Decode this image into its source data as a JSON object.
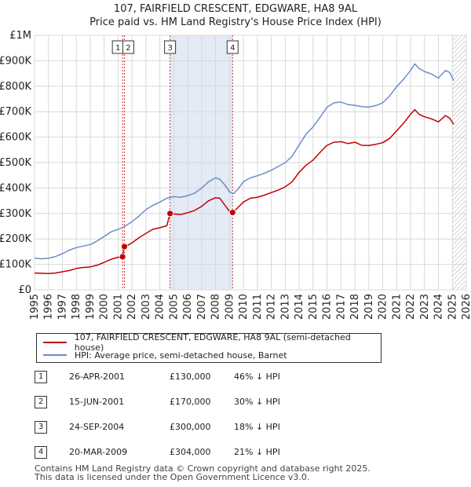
{
  "chart_data": {
    "type": "line",
    "title": "107, FAIRFIELD CRESCENT, EDGWARE, HA8 9AL",
    "subtitle": "Price paid vs. HM Land Registry's House Price Index (HPI)",
    "xlim": [
      1995,
      2026
    ],
    "ylim": [
      0,
      1000000
    ],
    "x_ticks": [
      "1995",
      "1996",
      "1997",
      "1998",
      "1999",
      "2000",
      "2001",
      "2002",
      "2003",
      "2004",
      "2005",
      "2006",
      "2007",
      "2008",
      "2009",
      "2010",
      "2011",
      "2012",
      "2013",
      "2014",
      "2015",
      "2016",
      "2017",
      "2018",
      "2019",
      "2020",
      "2021",
      "2022",
      "2023",
      "2024",
      "2025",
      "2026"
    ],
    "y_ticks": [
      {
        "value": 0,
        "label": "£0"
      },
      {
        "value": 100000,
        "label": "£100K"
      },
      {
        "value": 200000,
        "label": "£200K"
      },
      {
        "value": 300000,
        "label": "£300K"
      },
      {
        "value": 400000,
        "label": "£400K"
      },
      {
        "value": 500000,
        "label": "£500K"
      },
      {
        "value": 600000,
        "label": "£600K"
      },
      {
        "value": 700000,
        "label": "£700K"
      },
      {
        "value": 800000,
        "label": "£800K"
      },
      {
        "value": 900000,
        "label": "£900K"
      },
      {
        "value": 1000000,
        "label": "£1M"
      }
    ],
    "grid": true,
    "shaded_spans": [
      {
        "from": 2004.73,
        "to": 2009.22
      }
    ],
    "hatched_from": 2025.0,
    "series": [
      {
        "name": "107, FAIRFIELD CRESCENT, EDGWARE, HA8 9AL (semi-detached house)",
        "color": "#c00000",
        "points": [
          [
            1995.0,
            66000
          ],
          [
            1995.5,
            65000
          ],
          [
            1996.0,
            64000
          ],
          [
            1996.5,
            66000
          ],
          [
            1997.0,
            71000
          ],
          [
            1997.5,
            76000
          ],
          [
            1998.0,
            84000
          ],
          [
            1998.5,
            88000
          ],
          [
            1999.0,
            90000
          ],
          [
            1999.5,
            97000
          ],
          [
            2000.0,
            108000
          ],
          [
            2000.5,
            120000
          ],
          [
            2001.0,
            128000
          ],
          [
            2001.32,
            130000
          ],
          [
            2001.45,
            170000
          ],
          [
            2001.8,
            178000
          ],
          [
            2002.0,
            185000
          ],
          [
            2002.5,
            205000
          ],
          [
            2003.0,
            222000
          ],
          [
            2003.5,
            238000
          ],
          [
            2004.0,
            244000
          ],
          [
            2004.5,
            252000
          ],
          [
            2004.73,
            300000
          ],
          [
            2005.0,
            298000
          ],
          [
            2005.5,
            296000
          ],
          [
            2006.0,
            303000
          ],
          [
            2006.5,
            312000
          ],
          [
            2007.0,
            328000
          ],
          [
            2007.5,
            350000
          ],
          [
            2008.0,
            362000
          ],
          [
            2008.3,
            360000
          ],
          [
            2008.7,
            330000
          ],
          [
            2009.0,
            308000
          ],
          [
            2009.22,
            304000
          ],
          [
            2009.5,
            318000
          ],
          [
            2010.0,
            345000
          ],
          [
            2010.5,
            360000
          ],
          [
            2011.0,
            364000
          ],
          [
            2011.5,
            372000
          ],
          [
            2012.0,
            382000
          ],
          [
            2012.5,
            392000
          ],
          [
            2013.0,
            405000
          ],
          [
            2013.5,
            425000
          ],
          [
            2014.0,
            462000
          ],
          [
            2014.5,
            490000
          ],
          [
            2015.0,
            510000
          ],
          [
            2015.5,
            540000
          ],
          [
            2016.0,
            568000
          ],
          [
            2016.5,
            580000
          ],
          [
            2017.0,
            582000
          ],
          [
            2017.5,
            575000
          ],
          [
            2018.0,
            580000
          ],
          [
            2018.5,
            568000
          ],
          [
            2019.0,
            567000
          ],
          [
            2019.5,
            572000
          ],
          [
            2020.0,
            578000
          ],
          [
            2020.5,
            595000
          ],
          [
            2021.0,
            625000
          ],
          [
            2021.5,
            655000
          ],
          [
            2022.0,
            690000
          ],
          [
            2022.3,
            708000
          ],
          [
            2022.6,
            690000
          ],
          [
            2023.0,
            680000
          ],
          [
            2023.5,
            672000
          ],
          [
            2024.0,
            660000
          ],
          [
            2024.5,
            685000
          ],
          [
            2024.8,
            675000
          ],
          [
            2025.1,
            650000
          ]
        ]
      },
      {
        "name": "HPI: Average price, semi-detached house, Barnet",
        "color": "#6a8ec8",
        "points": [
          [
            1995.0,
            125000
          ],
          [
            1995.5,
            122000
          ],
          [
            1996.0,
            124000
          ],
          [
            1996.5,
            131000
          ],
          [
            1997.0,
            142000
          ],
          [
            1997.5,
            156000
          ],
          [
            1998.0,
            166000
          ],
          [
            1998.5,
            172000
          ],
          [
            1999.0,
            178000
          ],
          [
            1999.5,
            192000
          ],
          [
            2000.0,
            210000
          ],
          [
            2000.5,
            228000
          ],
          [
            2001.0,
            238000
          ],
          [
            2001.5,
            250000
          ],
          [
            2002.0,
            268000
          ],
          [
            2002.5,
            290000
          ],
          [
            2003.0,
            315000
          ],
          [
            2003.5,
            332000
          ],
          [
            2004.0,
            345000
          ],
          [
            2004.5,
            360000
          ],
          [
            2005.0,
            366000
          ],
          [
            2005.5,
            364000
          ],
          [
            2006.0,
            370000
          ],
          [
            2006.5,
            380000
          ],
          [
            2007.0,
            400000
          ],
          [
            2007.5,
            425000
          ],
          [
            2008.0,
            440000
          ],
          [
            2008.3,
            435000
          ],
          [
            2008.7,
            410000
          ],
          [
            2009.0,
            385000
          ],
          [
            2009.3,
            378000
          ],
          [
            2009.6,
            395000
          ],
          [
            2010.0,
            425000
          ],
          [
            2010.5,
            440000
          ],
          [
            2011.0,
            448000
          ],
          [
            2011.5,
            458000
          ],
          [
            2012.0,
            470000
          ],
          [
            2012.5,
            485000
          ],
          [
            2013.0,
            500000
          ],
          [
            2013.5,
            525000
          ],
          [
            2014.0,
            570000
          ],
          [
            2014.5,
            612000
          ],
          [
            2015.0,
            640000
          ],
          [
            2015.5,
            678000
          ],
          [
            2016.0,
            718000
          ],
          [
            2016.5,
            735000
          ],
          [
            2017.0,
            738000
          ],
          [
            2017.5,
            728000
          ],
          [
            2018.0,
            725000
          ],
          [
            2018.5,
            720000
          ],
          [
            2019.0,
            718000
          ],
          [
            2019.5,
            724000
          ],
          [
            2020.0,
            735000
          ],
          [
            2020.5,
            762000
          ],
          [
            2021.0,
            798000
          ],
          [
            2021.5,
            828000
          ],
          [
            2022.0,
            862000
          ],
          [
            2022.3,
            888000
          ],
          [
            2022.6,
            870000
          ],
          [
            2023.0,
            858000
          ],
          [
            2023.5,
            848000
          ],
          [
            2024.0,
            832000
          ],
          [
            2024.5,
            862000
          ],
          [
            2024.8,
            855000
          ],
          [
            2025.1,
            822000
          ]
        ]
      }
    ],
    "transactions": [
      {
        "id": "1",
        "x": 2001.32,
        "value": 130000,
        "date": "26-APR-2001",
        "price": "£130,000",
        "hpi": "46% ↓ HPI"
      },
      {
        "id": "2",
        "x": 2001.45,
        "value": 170000,
        "date": "15-JUN-2001",
        "price": "£170,000",
        "hpi": "30% ↓ HPI"
      },
      {
        "id": "3",
        "x": 2004.73,
        "value": 300000,
        "date": "24-SEP-2004",
        "price": "£300,000",
        "hpi": "18% ↓ HPI"
      },
      {
        "id": "4",
        "x": 2009.22,
        "value": 304000,
        "date": "20-MAR-2009",
        "price": "£304,000",
        "hpi": "21% ↓ HPI"
      }
    ]
  },
  "legend": {
    "property_label": "107, FAIRFIELD CRESCENT, EDGWARE, HA8 9AL (semi-detached house)",
    "hpi_label": "HPI: Average price, semi-detached house, Barnet"
  },
  "footer": {
    "line1": "Contains HM Land Registry data © Crown copyright and database right 2025.",
    "line2": "This data is licensed under the Open Government Licence v3.0."
  }
}
